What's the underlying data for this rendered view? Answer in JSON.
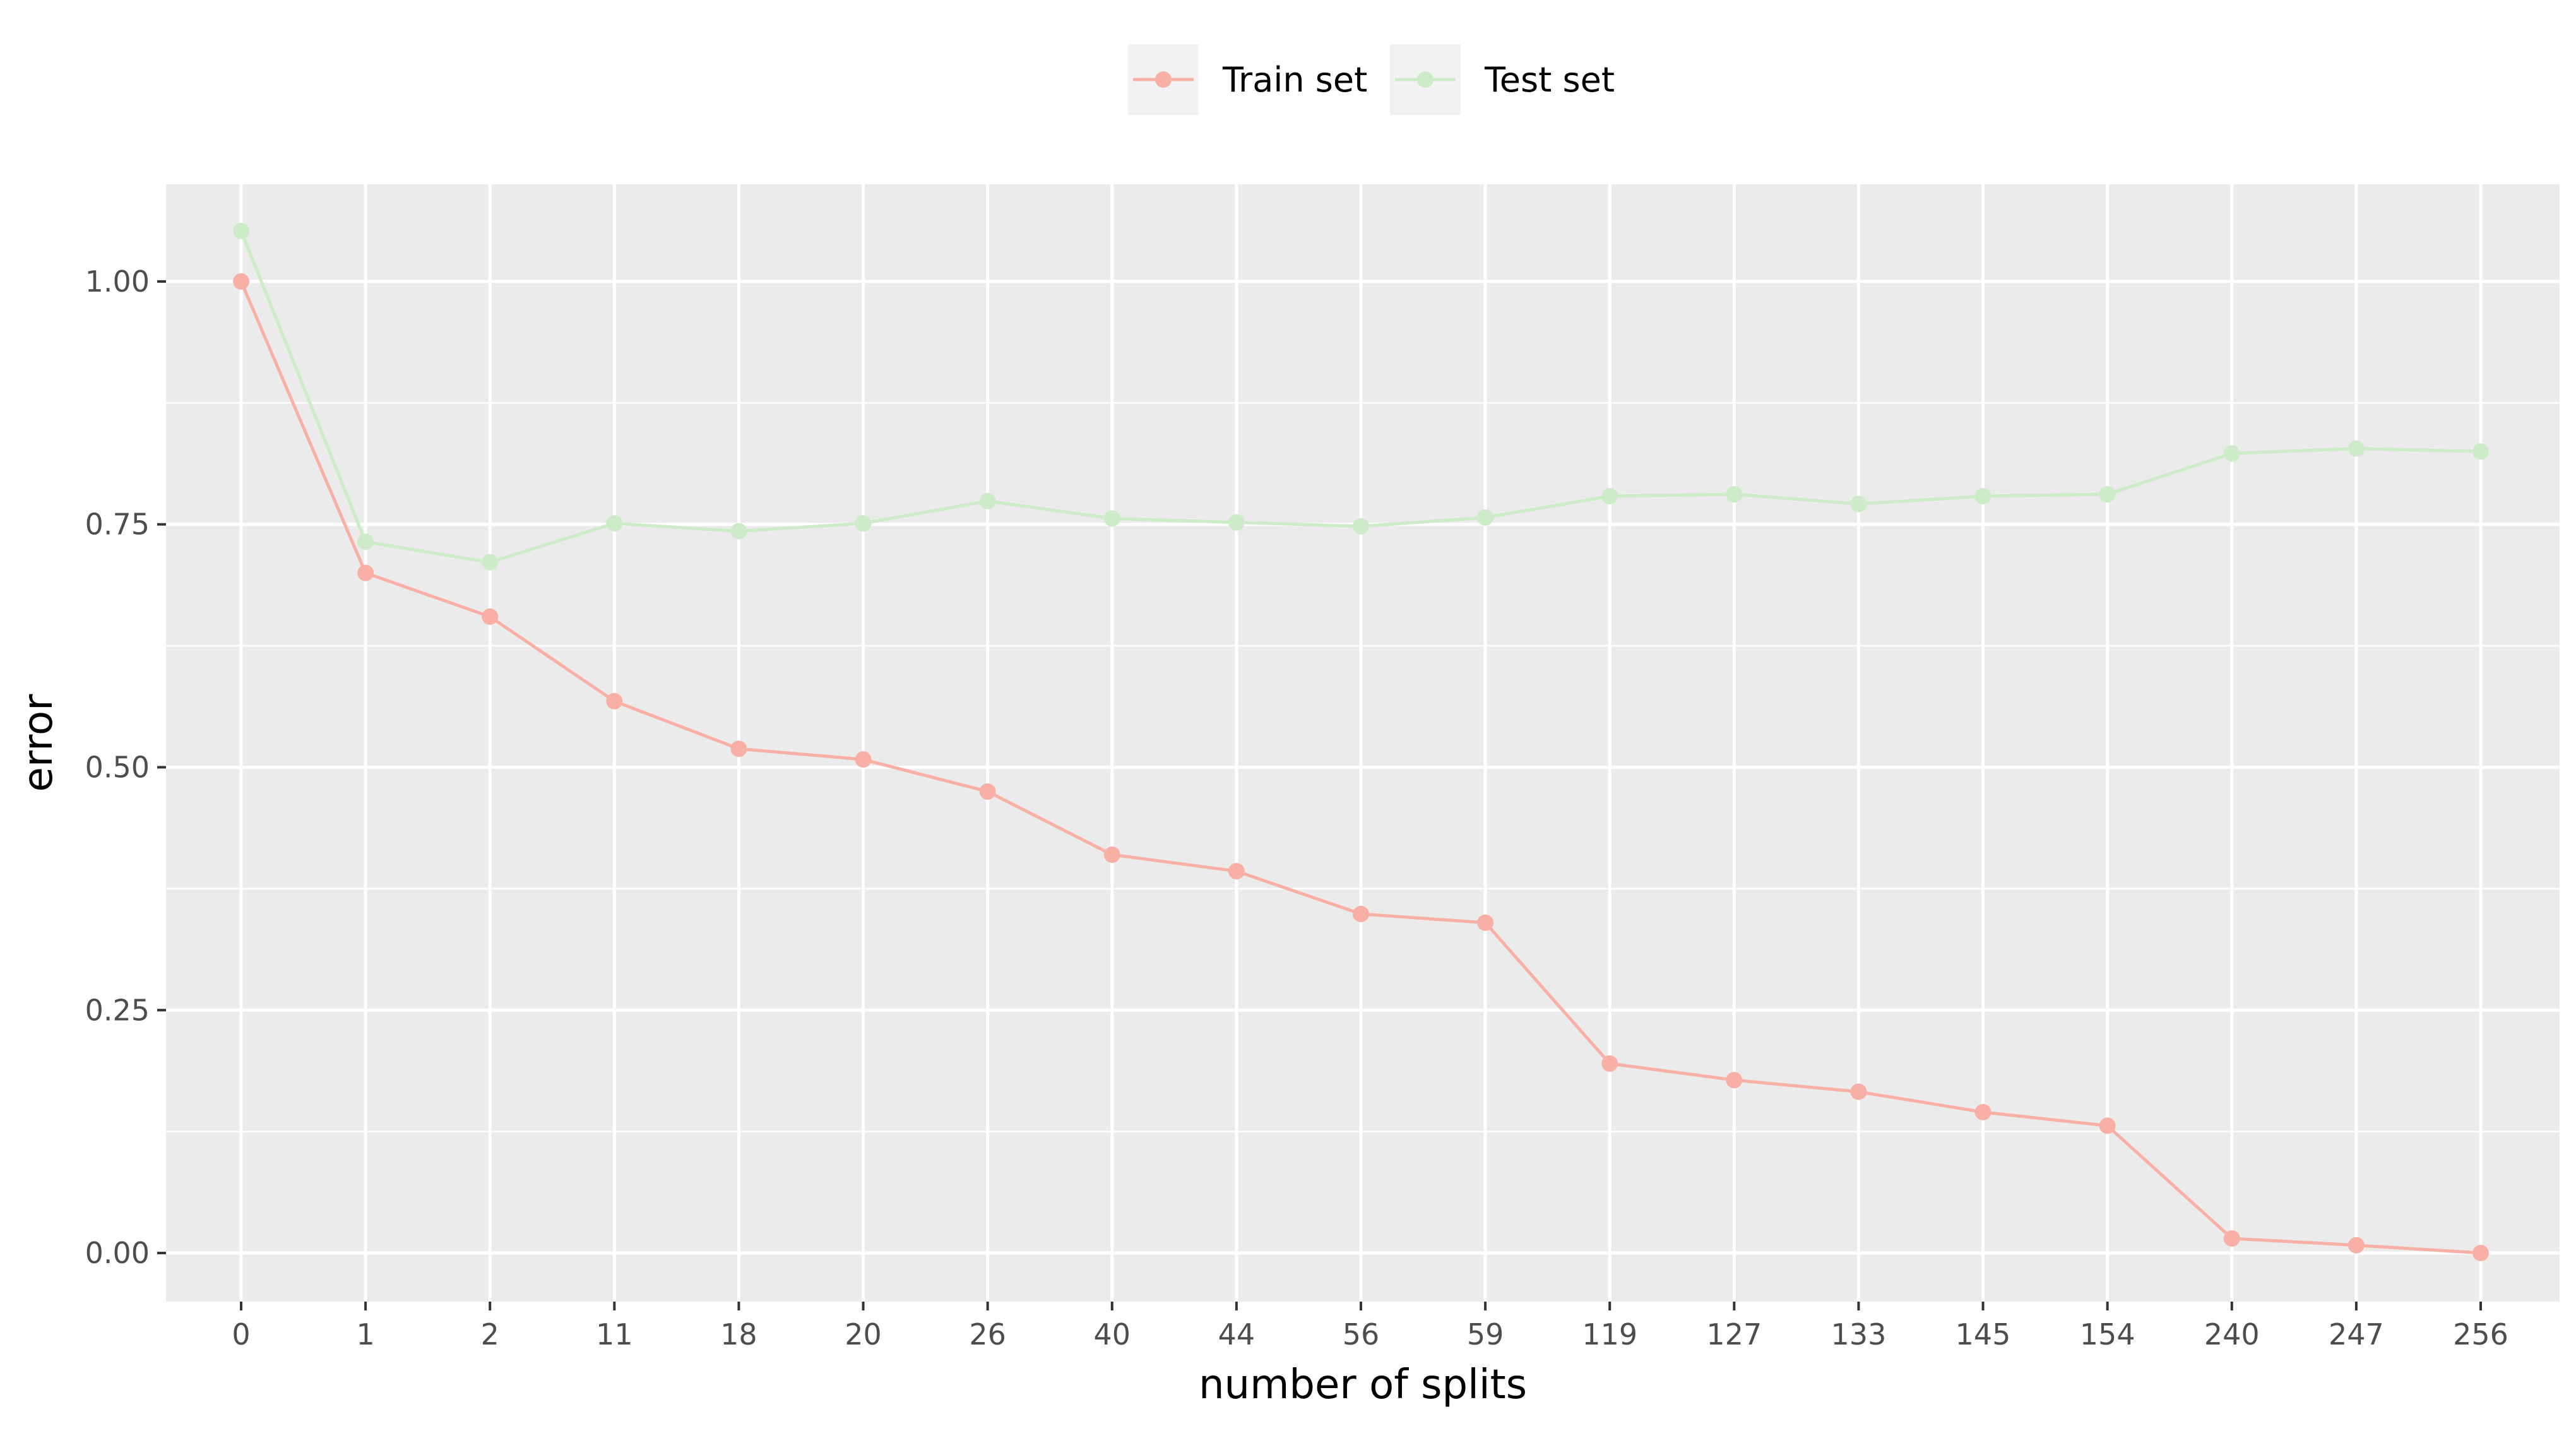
{
  "chart_data": {
    "type": "line",
    "categories": [
      "0",
      "1",
      "2",
      "11",
      "18",
      "20",
      "26",
      "40",
      "44",
      "56",
      "59",
      "119",
      "127",
      "133",
      "145",
      "154",
      "240",
      "247",
      "256"
    ],
    "series": [
      {
        "name": "Train set",
        "color": "#f8b0a6",
        "values": [
          1.0,
          0.7,
          0.655,
          0.568,
          0.519,
          0.508,
          0.475,
          0.41,
          0.393,
          0.349,
          0.34,
          0.195,
          0.178,
          0.166,
          0.145,
          0.131,
          0.015,
          0.008,
          0.0
        ]
      },
      {
        "name": "Test set",
        "color": "#cdebc8",
        "values": [
          1.052,
          0.732,
          0.711,
          0.751,
          0.743,
          0.751,
          0.774,
          0.756,
          0.752,
          0.748,
          0.757,
          0.779,
          0.781,
          0.771,
          0.779,
          0.781,
          0.823,
          0.828,
          0.825
        ]
      }
    ],
    "xlabel": "number of splits",
    "ylabel": "error",
    "ylim": [
      -0.05,
      1.1
    ],
    "yticks": [
      0.0,
      0.25,
      0.5,
      0.75,
      1.0
    ],
    "ytick_labels": [
      "0.00",
      "0.25",
      "0.50",
      "0.75",
      "1.00"
    ],
    "grid": true,
    "legend_position": "top-center",
    "panel_background": "#ebebeb",
    "grid_color": "#ffffff"
  }
}
